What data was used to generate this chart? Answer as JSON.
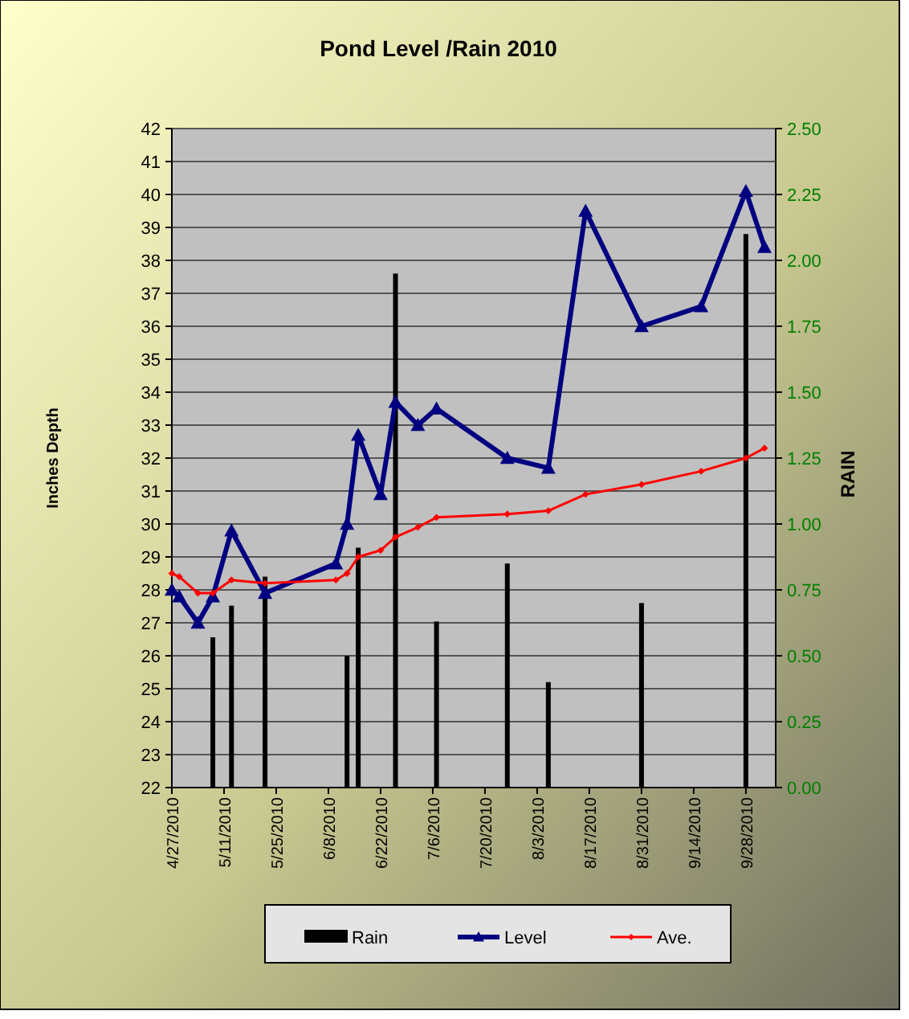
{
  "chart_data": {
    "type": "line",
    "title": "Pond Level /Rain 2010",
    "ylabel": "Inches Depth",
    "y2label": "RAIN",
    "xlim": [
      "2010-04-27",
      "2010-10-06"
    ],
    "xticks": [
      {
        "value": "2010-04-27",
        "label": "4/27/2010"
      },
      {
        "value": "2010-05-11",
        "label": "5/11/2010"
      },
      {
        "value": "2010-05-25",
        "label": "5/25/2010"
      },
      {
        "value": "2010-06-08",
        "label": "6/8/2010"
      },
      {
        "value": "2010-06-22",
        "label": "6/22/2010"
      },
      {
        "value": "2010-07-06",
        "label": "7/6/2010"
      },
      {
        "value": "2010-07-20",
        "label": "7/20/2010"
      },
      {
        "value": "2010-08-03",
        "label": "8/3/2010"
      },
      {
        "value": "2010-08-17",
        "label": "8/17/2010"
      },
      {
        "value": "2010-08-31",
        "label": "8/31/2010"
      },
      {
        "value": "2010-09-14",
        "label": "9/14/2010"
      },
      {
        "value": "2010-09-28",
        "label": "9/28/2010"
      }
    ],
    "ylim": [
      22,
      42
    ],
    "yticks": [
      22,
      23,
      24,
      25,
      26,
      27,
      28,
      29,
      30,
      31,
      32,
      33,
      34,
      35,
      36,
      37,
      38,
      39,
      40,
      41,
      42
    ],
    "y2lim": [
      0,
      2.5
    ],
    "y2ticks": [
      {
        "value": 0,
        "label": "0.00"
      },
      {
        "value": 0.25,
        "label": "0.25"
      },
      {
        "value": 0.5,
        "label": "0.50"
      },
      {
        "value": 0.75,
        "label": "0.75"
      },
      {
        "value": 1,
        "label": "1.00"
      },
      {
        "value": 1.25,
        "label": "1.25"
      },
      {
        "value": 1.5,
        "label": "1.50"
      },
      {
        "value": 1.75,
        "label": "1.75"
      },
      {
        "value": 2,
        "label": "2.00"
      },
      {
        "value": 2.25,
        "label": "2.25"
      },
      {
        "value": 2.5,
        "label": "2.50"
      }
    ],
    "grid": "y",
    "legend": "bottom",
    "series": [
      {
        "name": "Rain",
        "type": "bar",
        "axis": "y2",
        "color": "#000000",
        "x": [
          "2010-05-08",
          "2010-05-13",
          "2010-05-22",
          "2010-06-13",
          "2010-06-16",
          "2010-06-26",
          "2010-07-07",
          "2010-07-26",
          "2010-08-06",
          "2010-08-31",
          "2010-09-28"
        ],
        "values": [
          0.57,
          0.69,
          0.8,
          0.5,
          0.91,
          1.95,
          0.63,
          0.85,
          0.4,
          0.7,
          2.1
        ]
      },
      {
        "name": "Level",
        "marker": "triangle",
        "color": "#000080",
        "x": [
          "2010-04-27",
          "2010-04-29",
          "2010-05-04",
          "2010-05-08",
          "2010-05-13",
          "2010-05-22",
          "2010-06-10",
          "2010-06-13",
          "2010-06-16",
          "2010-06-22",
          "2010-06-26",
          "2010-07-02",
          "2010-07-07",
          "2010-07-26",
          "2010-08-06",
          "2010-08-16",
          "2010-08-31",
          "2010-09-16",
          "2010-09-28",
          "2010-10-03"
        ],
        "values": [
          28.0,
          27.8,
          27.0,
          27.8,
          29.8,
          27.9,
          28.8,
          30.0,
          32.7,
          30.9,
          33.7,
          33.0,
          33.5,
          32.0,
          31.7,
          39.5,
          36.0,
          36.6,
          40.1,
          38.4
        ]
      },
      {
        "name": "Ave.",
        "marker": "diamond",
        "color": "#ff0000",
        "x": [
          "2010-04-27",
          "2010-04-29",
          "2010-05-04",
          "2010-05-08",
          "2010-05-13",
          "2010-05-22",
          "2010-06-10",
          "2010-06-13",
          "2010-06-16",
          "2010-06-22",
          "2010-06-26",
          "2010-07-02",
          "2010-07-07",
          "2010-07-26",
          "2010-08-06",
          "2010-08-16",
          "2010-08-31",
          "2010-09-16",
          "2010-09-28",
          "2010-10-03"
        ],
        "values": [
          28.5,
          28.4,
          27.9,
          27.9,
          28.3,
          28.2,
          28.3,
          28.5,
          29.0,
          29.2,
          29.6,
          29.9,
          30.2,
          30.3,
          30.4,
          30.9,
          31.2,
          31.6,
          32.0,
          32.3
        ]
      }
    ]
  }
}
